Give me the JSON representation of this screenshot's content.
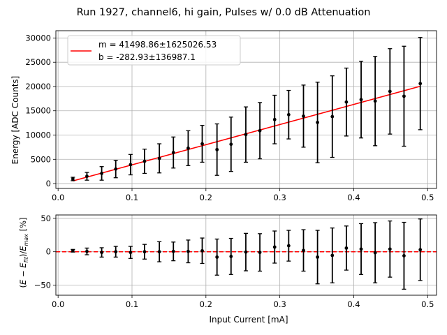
{
  "chart_data": [
    {
      "type": "scatter",
      "figure_title": "Run 1927, channel6, hi gain, Pulses w/ 0.0 dB Attenuation",
      "ylabel": "Energy [ADC Counts]",
      "xlabel": "",
      "xlim": [
        -0.003,
        0.512
      ],
      "ylim": [
        -1000,
        31500
      ],
      "xticks": [
        0.0,
        0.1,
        0.2,
        0.3,
        0.4,
        0.5
      ],
      "xtick_labels": [
        "0.0",
        "0.1",
        "0.2",
        "0.3",
        "0.4",
        "0.5"
      ],
      "yticks": [
        0,
        5000,
        10000,
        15000,
        20000,
        25000,
        30000
      ],
      "ytick_labels": [
        "0",
        "5000",
        "10000",
        "15000",
        "20000",
        "25000",
        "30000"
      ],
      "grid": true,
      "legend_position": "upper-left",
      "legend": [
        {
          "label_line1": "m = 41498.86±1625026.53",
          "label_line2": "b = -282.93±136987.1",
          "color": "#ff0000"
        }
      ],
      "fit_line": {
        "x": [
          0.02,
          0.49
        ],
        "y": [
          547,
          20052
        ],
        "color": "#ff0000"
      },
      "series": [
        {
          "name": "data",
          "color": "#000000",
          "x": [
            0.02,
            0.039,
            0.059,
            0.078,
            0.098,
            0.117,
            0.137,
            0.156,
            0.176,
            0.195,
            0.215,
            0.234,
            0.254,
            0.273,
            0.293,
            0.312,
            0.332,
            0.351,
            0.371,
            0.39,
            0.41,
            0.429,
            0.449,
            0.468,
            0.49
          ],
          "y": [
            950,
            1500,
            2100,
            3000,
            3900,
            4600,
            5200,
            6400,
            7300,
            8200,
            7000,
            8100,
            10100,
            10900,
            13200,
            14200,
            13900,
            12600,
            13800,
            16800,
            17300,
            17000,
            19000,
            18000,
            20600
          ],
          "yerr": [
            350,
            800,
            1400,
            1800,
            2100,
            2500,
            3000,
            3200,
            3600,
            3800,
            5300,
            5600,
            5700,
            5800,
            5000,
            5000,
            6400,
            8300,
            8400,
            7000,
            7900,
            9200,
            8800,
            10300,
            9500
          ]
        }
      ]
    },
    {
      "type": "scatter",
      "xlabel": "Input Current [mA]",
      "ylabel": "(E − E_fit)/E_max  [%]",
      "ylabel_parts": {
        "open": "(",
        "e": "E",
        "minus": " − ",
        "e2": "E",
        "fit": "fit",
        "close": ")/",
        "e3": "E",
        "max": "max",
        "unit": "  [%]"
      },
      "xlim": [
        -0.003,
        0.512
      ],
      "ylim": [
        -65,
        55
      ],
      "xticks": [
        0.0,
        0.1,
        0.2,
        0.3,
        0.4,
        0.5
      ],
      "xtick_labels": [
        "0.0",
        "0.1",
        "0.2",
        "0.3",
        "0.4",
        "0.5"
      ],
      "yticks": [
        -50,
        0,
        50
      ],
      "ytick_labels": [
        "−50",
        "0",
        "50"
      ],
      "grid": true,
      "zero_line": {
        "y": 0,
        "style": "dashed",
        "color": "#ff0000"
      },
      "series": [
        {
          "name": "residuals",
          "color": "#000000",
          "x": [
            0.02,
            0.039,
            0.059,
            0.078,
            0.098,
            0.117,
            0.137,
            0.156,
            0.176,
            0.195,
            0.215,
            0.234,
            0.254,
            0.273,
            0.293,
            0.312,
            0.332,
            0.351,
            0.371,
            0.39,
            0.41,
            0.429,
            0.449,
            0.468,
            0.49
          ],
          "y": [
            1.5,
            0.5,
            -1,
            0,
            -1,
            0,
            0,
            0.5,
            0.5,
            1.5,
            -8,
            -7,
            -0.5,
            -1,
            7,
            9,
            2,
            -8,
            -5.5,
            5.5,
            4,
            -1.5,
            4,
            -6,
            3
          ],
          "yerr": [
            2,
            5,
            7,
            8,
            9,
            11,
            15,
            14,
            17,
            19,
            27,
            27,
            28,
            28,
            24,
            23,
            31,
            40,
            41,
            33,
            38,
            45,
            42,
            50,
            46
          ]
        }
      ]
    }
  ]
}
